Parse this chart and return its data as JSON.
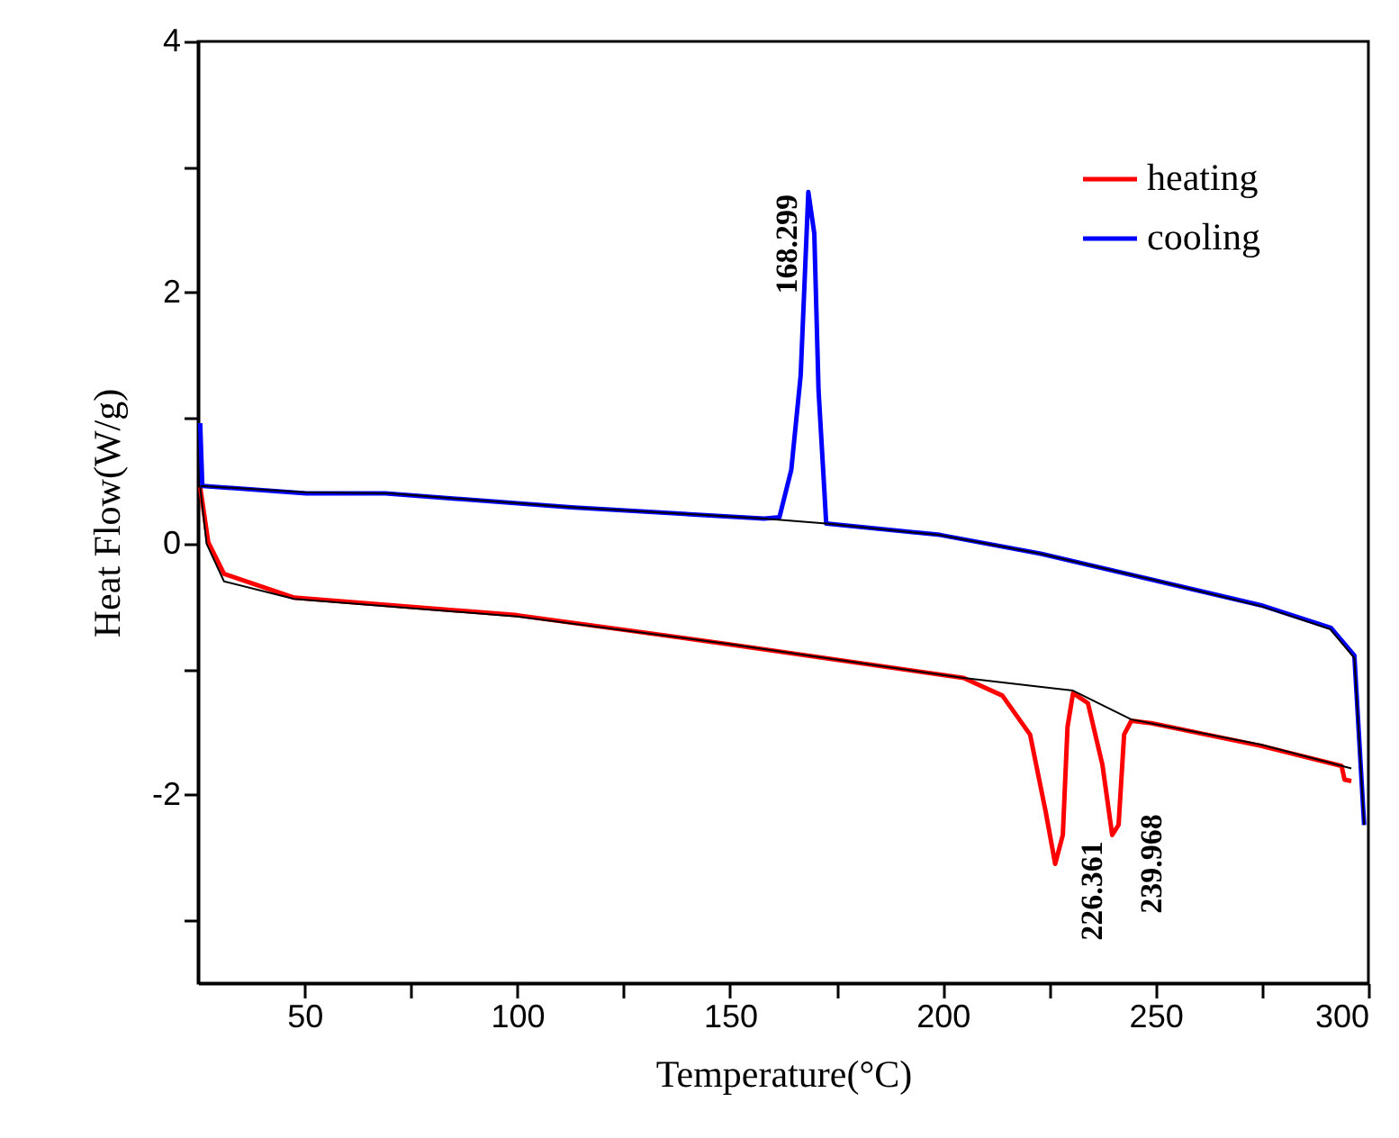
{
  "chart_data": {
    "type": "line",
    "xlabel": "Temperature(°C)",
    "ylabel": "Heat Flow(W/g)",
    "xlim": [
      25,
      300
    ],
    "ylim": [
      -3.5,
      4
    ],
    "xticks": [
      50,
      {
        "value": 75,
        "label": null
      },
      100,
      {
        "value": 125,
        "label": null
      },
      150,
      {
        "value": 175,
        "label": null
      },
      200,
      {
        "value": 225,
        "label": null
      },
      250,
      {
        "value": 275,
        "label": null
      },
      300
    ],
    "yticks": [
      {
        "value": -3,
        "label": null
      },
      -2,
      {
        "value": -1,
        "label": null
      },
      0,
      {
        "value": 1,
        "label": null
      },
      2,
      {
        "value": 3,
        "label": null
      },
      4
    ],
    "legend": "top right",
    "series": [
      {
        "name": "heating",
        "color": "#ff0000",
        "x": [
          25.5,
          27.4,
          31.1,
          47.6,
          100,
          149.5,
          204.9,
          214,
          220.5,
          224.2,
          226.4,
          228.2,
          229.3,
          230.6,
          234.1,
          237.5,
          239.8,
          241.3,
          242.6,
          244.3,
          249,
          274.7,
          293.7,
          294.4,
          296
        ],
        "values": [
          0.45,
          0.01,
          -0.24,
          -0.43,
          -0.57,
          -0.8,
          -1.07,
          -1.21,
          -1.52,
          -2.14,
          -2.55,
          -2.32,
          -1.46,
          -1.19,
          -1.27,
          -1.76,
          -2.32,
          -2.24,
          -1.52,
          -1.41,
          -1.43,
          -1.61,
          -1.77,
          -1.88,
          -1.89
        ]
      },
      {
        "name": "cooling",
        "color": "#0000ff",
        "x": [
          25.5,
          26,
          50.4,
          69,
          112.7,
          158,
          161.6,
          164.4,
          166.6,
          168.4,
          169.8,
          170.8,
          172.1,
          172.6,
          199.3,
          223,
          250.8,
          274.7,
          291.2,
          296.7,
          299
        ],
        "values": [
          0.96,
          0.46,
          0.4,
          0.4,
          0.29,
          0.2,
          0.21,
          0.59,
          1.34,
          2.8,
          2.47,
          1.22,
          0.46,
          0.16,
          0.07,
          -0.08,
          -0.3,
          -0.49,
          -0.67,
          -0.89,
          -2.24
        ]
      },
      {
        "color": "#000000",
        "x": [
          25.5,
          27,
          31.1,
          47.6,
          100,
          150,
          204.9,
          230.6,
          244.3,
          274.7,
          296
        ],
        "values": [
          0.45,
          0,
          -0.3,
          -0.44,
          -0.58,
          -0.8,
          -1.07,
          -1.17,
          -1.4,
          -1.6,
          -1.79
        ]
      },
      {
        "color": "#000000",
        "x": [
          25.5,
          50,
          70,
          113,
          158,
          172.6,
          199,
          223,
          251,
          275,
          291,
          296.7,
          299
        ],
        "values": [
          0.46,
          0.41,
          0.4,
          0.29,
          0.2,
          0.16,
          0.07,
          -0.08,
          -0.3,
          -0.5,
          -0.68,
          -0.91,
          -2.24
        ]
      }
    ],
    "annotations": [
      {
        "text": "168.299",
        "x": 168.299,
        "y": 2.8
      },
      {
        "text": "226.361",
        "x": 226.361,
        "y": -2.55
      },
      {
        "text": "239.968",
        "x": 239.968,
        "y": -2.32
      }
    ]
  }
}
